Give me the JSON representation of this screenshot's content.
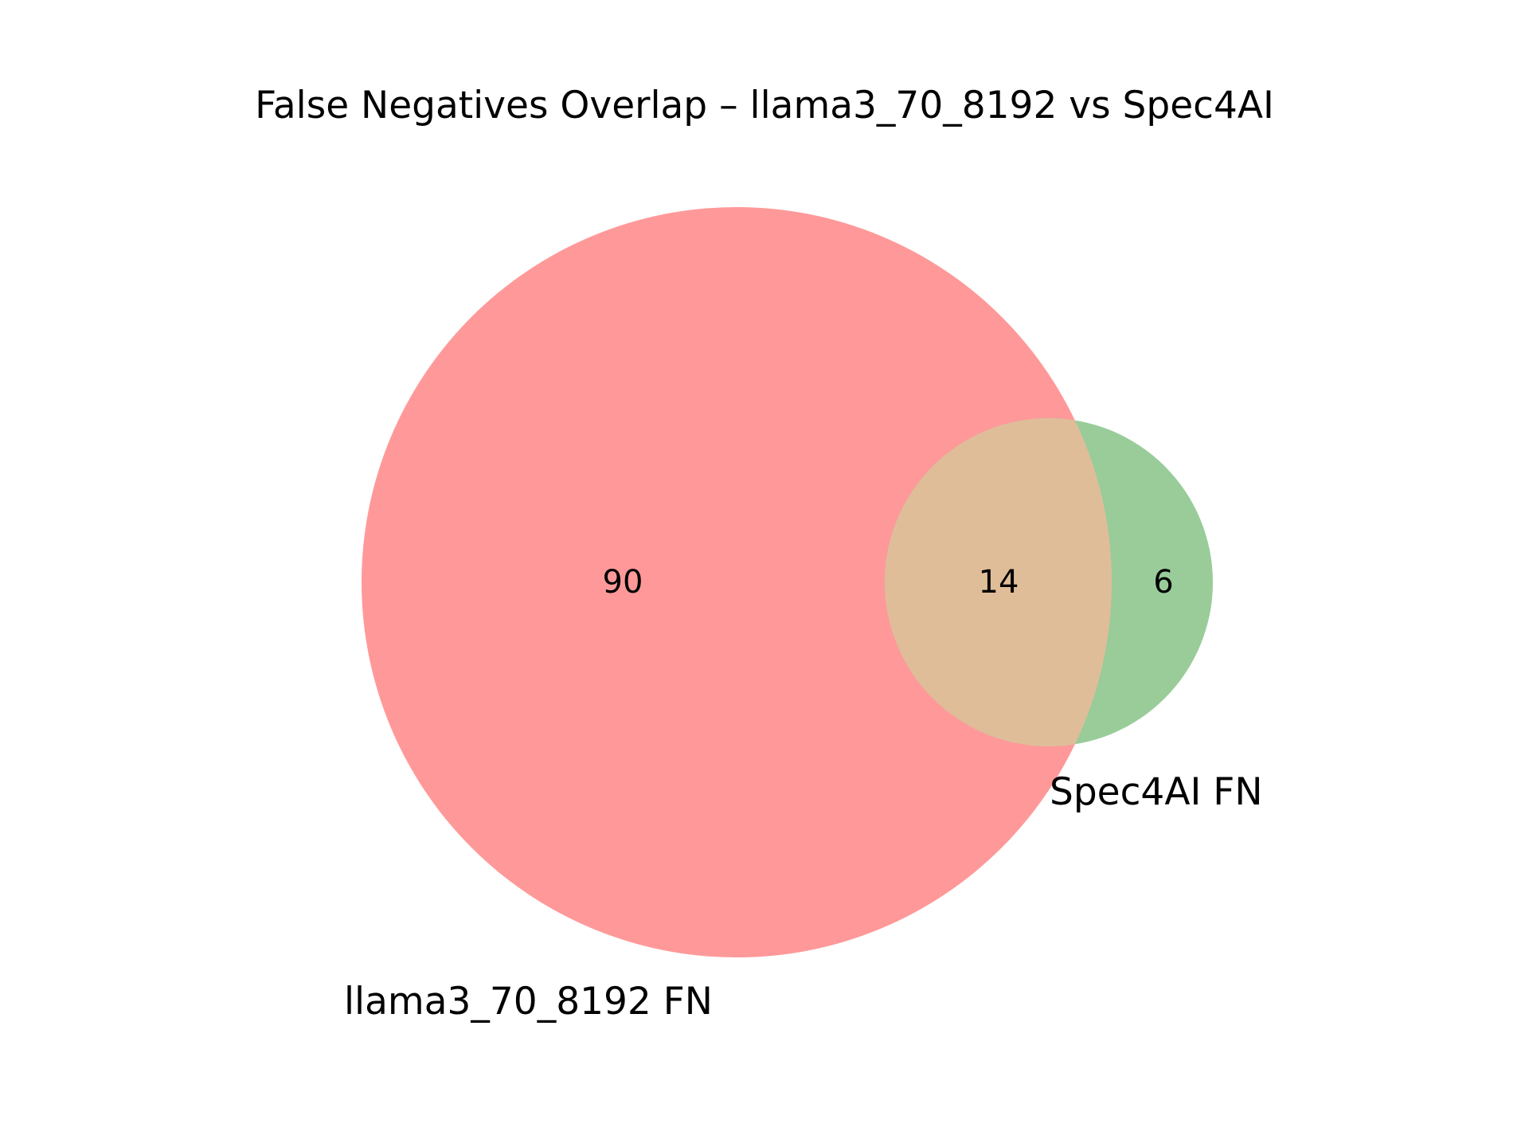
{
  "title": "False Negatives Overlap – llama3_70_8192 vs Spec4AI",
  "sets": [
    {
      "label": "llama3_70_8192 FN",
      "color": "#ff9999",
      "only_count": "90"
    },
    {
      "label": "Spec4AI FN",
      "color": "#99cc99",
      "only_count": "6"
    }
  ],
  "intersection": {
    "count": "14",
    "color": "#e0bd99"
  }
}
